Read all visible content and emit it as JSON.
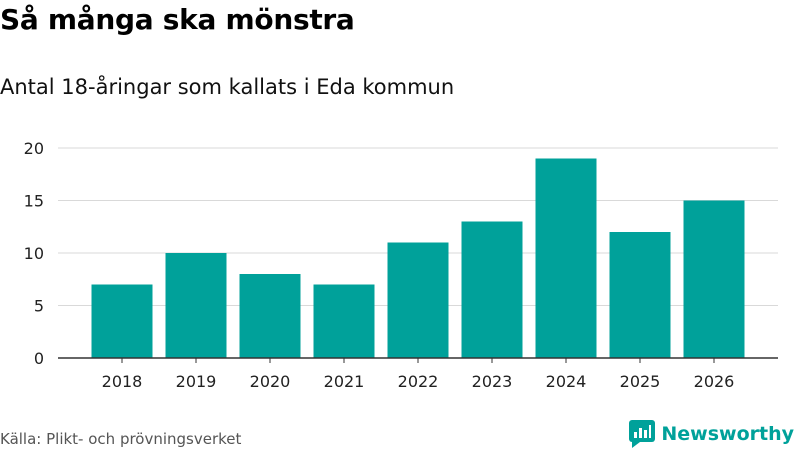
{
  "title": "Så många ska mönstra",
  "subtitle": "Antal 18-åringar som kallats i Eda kommun",
  "source": "Källa: Plikt- och prövningsverket",
  "brand": {
    "name": "Newsworthy",
    "icon": "newsworthy-logo-icon"
  },
  "colors": {
    "bar": "#00a19a",
    "grid": "#d9d9d9",
    "axis": "#333333",
    "brand": "#00a19a"
  },
  "chart_data": {
    "type": "bar",
    "title": "Så många ska mönstra",
    "subtitle": "Antal 18-åringar som kallats i Eda kommun",
    "xlabel": "",
    "ylabel": "",
    "categories": [
      "2018",
      "2019",
      "2020",
      "2021",
      "2022",
      "2023",
      "2024",
      "2025",
      "2026"
    ],
    "values": [
      7,
      10,
      8,
      7,
      11,
      13,
      19,
      12,
      15
    ],
    "ylim": [
      0,
      20
    ],
    "yticks": [
      0,
      5,
      10,
      15,
      20
    ],
    "grid": true,
    "legend": "none"
  }
}
